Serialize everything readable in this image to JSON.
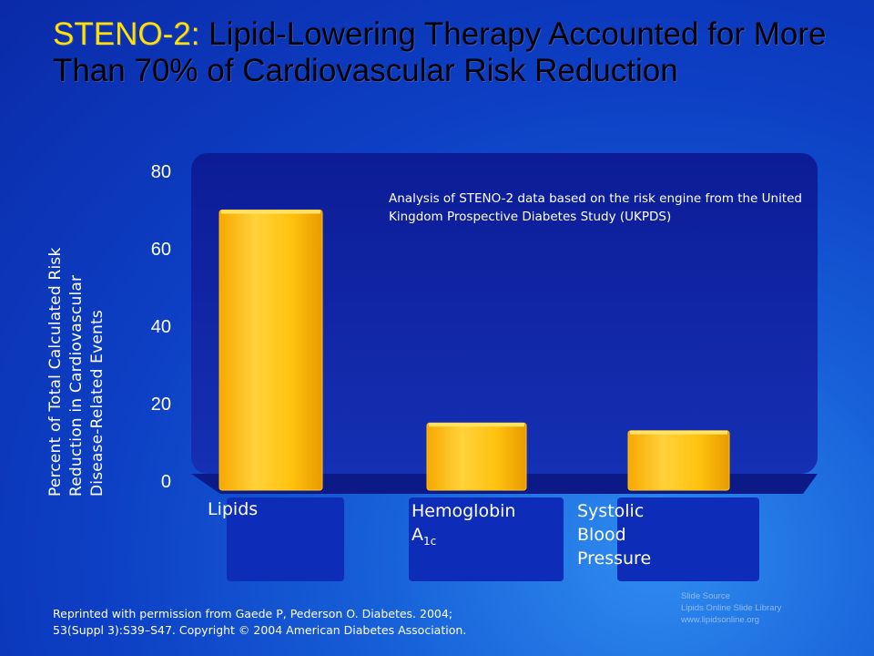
{
  "title": {
    "lead": "STENO-2:",
    "line1_rest": "  Lipid-Lowering Therapy Accounted for More",
    "line2": "Than 70% of Cardiovascular Risk Reduction"
  },
  "colors": {
    "title_lead": "#ffe000",
    "bar_fill": "#ffc20e",
    "bar_highlight": "#ffe36a",
    "plot_panel": "#0e1f9e",
    "background": "#1449cc"
  },
  "ylabel_lines": [
    "Percent of Total Calculated Risk",
    "Reduction in Cardiovascular",
    "Disease-Related Events"
  ],
  "annotation": "Analysis of STENO-2 data based on the risk engine from the United Kingdom Prospective Diabetes Study (UKPDS)",
  "category_labels": {
    "lipids": "Lipids",
    "hba1c_main": "Hemoglobin",
    "hba1c_letter": "A",
    "hba1c_sub": "1c",
    "sbp_1": "Systolic",
    "sbp_2": "Blood",
    "sbp_3": "Pressure"
  },
  "footer": {
    "line1": "Reprinted with permission from Gaede P, Pederson O. Diabetes. 2004;",
    "line2": "53(Suppl 3):S39–S47. Copyright © 2004 American Diabetes Association."
  },
  "source": {
    "line1": "Slide Source",
    "line2": "Lipids Online Slide Library",
    "line3": "www.lipidsonline.org"
  },
  "chart_data": {
    "type": "bar",
    "categories": [
      "Lipids",
      "Hemoglobin A1c",
      "Systolic Blood Pressure"
    ],
    "values": [
      70,
      15,
      13
    ],
    "title": "STENO-2: Lipid-Lowering Therapy Accounted for More Than 70% of Cardiovascular Risk Reduction",
    "xlabel": "",
    "ylabel": "Percent of Total Calculated Risk Reduction in Cardiovascular Disease-Related Events",
    "ylim": [
      0,
      80
    ],
    "yticks": [
      0,
      20,
      40,
      60,
      80
    ],
    "grid": false,
    "legend": "none"
  }
}
